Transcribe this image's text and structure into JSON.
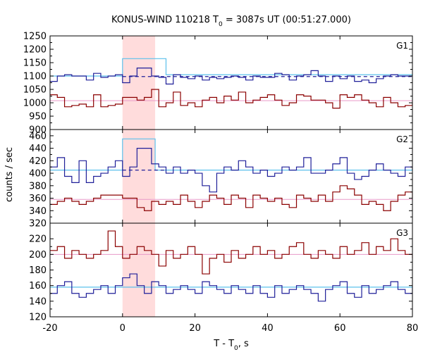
{
  "title": {
    "main": "KONUS-WIND 110218 T",
    "sub": "0",
    "rest": " = 3087s UT (00:51:27.000)"
  },
  "xlabel": {
    "main": "T - T",
    "sub": "0",
    "rest": ", s"
  },
  "ylabel": "counts / sec",
  "colors": {
    "red_series": "#8b0000",
    "blue_series": "#1f1f99",
    "fit_line": "#5bc0eb",
    "bg_line": "#e89ac8",
    "highlight": "#ffdcdc",
    "frame": "#000000"
  },
  "chart_data": {
    "type": "line",
    "xlim": [
      -20,
      80
    ],
    "x_ticks": [
      -20,
      0,
      20,
      40,
      60,
      80
    ],
    "bin_width": 2.0,
    "x_start": -20,
    "highlight": {
      "x_from": 0,
      "x_to": 9
    },
    "panels": [
      {
        "name": "G1",
        "ylim": [
          900,
          1250
        ],
        "y_ticks": [
          900,
          950,
          1000,
          1050,
          1100,
          1150,
          1200,
          1250
        ],
        "series": [
          {
            "color": "blue",
            "values": [
              1080,
              1100,
              1105,
              1100,
              1100,
              1085,
              1110,
              1095,
              1100,
              1105,
              1075,
              1100,
              1130,
              1130,
              1100,
              1095,
              1070,
              1105,
              1095,
              1090,
              1100,
              1085,
              1095,
              1090,
              1095,
              1100,
              1095,
              1085,
              1100,
              1095,
              1095,
              1110,
              1105,
              1085,
              1100,
              1105,
              1120,
              1100,
              1080,
              1100,
              1090,
              1100,
              1080,
              1085,
              1075,
              1090,
              1100,
              1105,
              1100,
              1100,
              1100
            ]
          },
          {
            "color": "red",
            "values": [
              1030,
              1020,
              985,
              990,
              995,
              985,
              1030,
              985,
              990,
              995,
              1020,
              1020,
              1010,
              1020,
              1050,
              985,
              1000,
              1040,
              990,
              1000,
              985,
              1010,
              1020,
              1000,
              1025,
              1010,
              1040,
              1000,
              1010,
              1020,
              1030,
              1010,
              990,
              1000,
              1030,
              1025,
              1010,
              1010,
              1000,
              980,
              1030,
              1020,
              1030,
              1010,
              1000,
              985,
              1020,
              1000,
              985,
              990,
              1000
            ]
          }
        ],
        "fits": [
          {
            "style": "solid",
            "color": "fit",
            "segments": [
              [
                -20,
                1100
              ],
              [
                0,
                1100
              ],
              [
                0,
                1165
              ],
              [
                12,
                1165
              ],
              [
                12,
                1105
              ],
              [
                80,
                1105
              ]
            ]
          },
          {
            "style": "dashed",
            "color": "blue",
            "segments": [
              [
                0,
                1098
              ],
              [
                80,
                1098
              ]
            ]
          },
          {
            "style": "solid",
            "color": "bg",
            "segments": [
              [
                -20,
                1008
              ],
              [
                80,
                1008
              ]
            ]
          }
        ]
      },
      {
        "name": "G2",
        "ylim": [
          320,
          470
        ],
        "y_ticks": [
          320,
          340,
          360,
          380,
          400,
          420,
          440,
          460
        ],
        "series": [
          {
            "color": "blue",
            "values": [
              410,
              425,
              395,
              385,
              420,
              385,
              395,
              400,
              410,
              420,
              395,
              410,
              440,
              440,
              415,
              410,
              400,
              410,
              400,
              405,
              400,
              380,
              370,
              400,
              410,
              405,
              420,
              410,
              400,
              405,
              395,
              400,
              410,
              405,
              410,
              425,
              400,
              400,
              405,
              415,
              425,
              400,
              390,
              395,
              405,
              415,
              405,
              400,
              395,
              410,
              405
            ]
          },
          {
            "color": "red",
            "values": [
              350,
              355,
              360,
              355,
              350,
              355,
              360,
              365,
              365,
              365,
              360,
              360,
              345,
              340,
              355,
              350,
              355,
              350,
              365,
              355,
              345,
              355,
              365,
              360,
              350,
              365,
              360,
              345,
              365,
              360,
              355,
              360,
              350,
              345,
              365,
              360,
              355,
              365,
              355,
              370,
              380,
              375,
              365,
              350,
              355,
              350,
              340,
              355,
              365,
              370,
              360
            ]
          }
        ],
        "fits": [
          {
            "style": "solid",
            "color": "fit",
            "segments": [
              [
                -20,
                405
              ],
              [
                0,
                405
              ],
              [
                0,
                455
              ],
              [
                9,
                455
              ],
              [
                9,
                405
              ],
              [
                80,
                405
              ]
            ]
          },
          {
            "style": "dashed",
            "color": "blue",
            "segments": [
              [
                0,
                405
              ],
              [
                12,
                405
              ]
            ]
          },
          {
            "style": "solid",
            "color": "bg",
            "segments": [
              [
                -20,
                358
              ],
              [
                80,
                358
              ]
            ]
          }
        ]
      },
      {
        "name": "G3",
        "ylim": [
          120,
          240
        ],
        "y_ticks": [
          120,
          140,
          160,
          180,
          200,
          220
        ],
        "series": [
          {
            "color": "blue",
            "values": [
              150,
              160,
              165,
              150,
              145,
              150,
              155,
              160,
              150,
              160,
              170,
              175,
              160,
              150,
              165,
              160,
              150,
              155,
              160,
              155,
              150,
              165,
              160,
              155,
              150,
              160,
              155,
              150,
              160,
              150,
              145,
              160,
              150,
              155,
              160,
              155,
              150,
              140,
              155,
              160,
              165,
              150,
              145,
              160,
              150,
              155,
              160,
              165,
              155,
              150,
              160
            ]
          },
          {
            "color": "red",
            "values": [
              205,
              210,
              195,
              205,
              200,
              195,
              200,
              205,
              230,
              210,
              195,
              200,
              210,
              205,
              200,
              185,
              205,
              195,
              200,
              210,
              200,
              175,
              195,
              200,
              190,
              205,
              195,
              200,
              210,
              200,
              205,
              195,
              200,
              210,
              215,
              200,
              195,
              205,
              200,
              195,
              210,
              200,
              205,
              215,
              200,
              210,
              205,
              220,
              205,
              200,
              195
            ]
          }
        ],
        "fits": [
          {
            "style": "solid",
            "color": "fit",
            "segments": [
              [
                -20,
                158
              ],
              [
                80,
                158
              ]
            ]
          },
          {
            "style": "solid",
            "color": "bg",
            "segments": [
              [
                -20,
                200
              ],
              [
                80,
                200
              ]
            ]
          }
        ]
      }
    ]
  }
}
